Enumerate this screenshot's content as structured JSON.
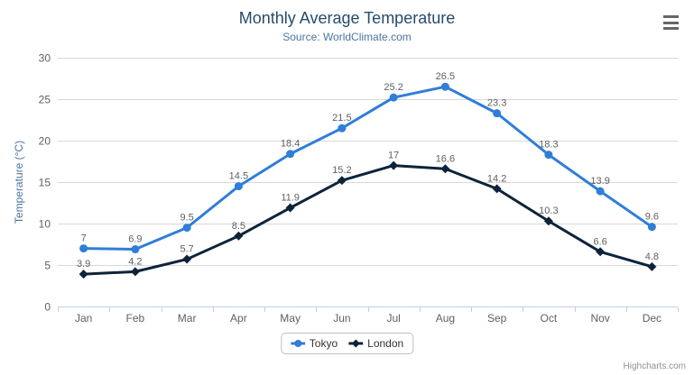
{
  "chart_data": {
    "type": "line",
    "title": "Monthly Average Temperature",
    "subtitle": "Source: WorldClimate.com",
    "categories": [
      "Jan",
      "Feb",
      "Mar",
      "Apr",
      "May",
      "Jun",
      "Jul",
      "Aug",
      "Sep",
      "Oct",
      "Nov",
      "Dec"
    ],
    "series": [
      {
        "name": "Tokyo",
        "color": "#2f7ed8",
        "marker": "circle",
        "values": [
          7,
          6.9,
          9.5,
          14.5,
          18.4,
          21.5,
          25.2,
          26.5,
          23.3,
          18.3,
          13.9,
          9.6
        ]
      },
      {
        "name": "London",
        "color": "#0d233a",
        "marker": "diamond",
        "values": [
          3.9,
          4.2,
          5.7,
          8.5,
          11.9,
          15.2,
          17,
          16.6,
          14.2,
          10.3,
          6.6,
          4.8
        ]
      }
    ],
    "xlabel": "",
    "ylabel": "Temperature (°C)",
    "ylim": [
      0,
      30
    ],
    "yticks": [
      0,
      5,
      10,
      15,
      20,
      25,
      30
    ],
    "grid": true,
    "data_labels": true,
    "legend_position": "bottom"
  },
  "credits": {
    "label": "Highcharts.com"
  },
  "menu": {
    "icon": "hamburger-icon"
  },
  "colors": {
    "title": "#274b6d",
    "subtitle": "#4d759e",
    "axis_title": "#4d759e",
    "axis_labels": "#606060",
    "data_labels": "#606060",
    "gridline": "#d8d8d8",
    "axis_line": "#c0d0e0",
    "legend_text": "#333333",
    "legend_border": "#c0c0c0",
    "credits": "#909090",
    "menu_icon": "#666666",
    "background": "#ffffff"
  }
}
